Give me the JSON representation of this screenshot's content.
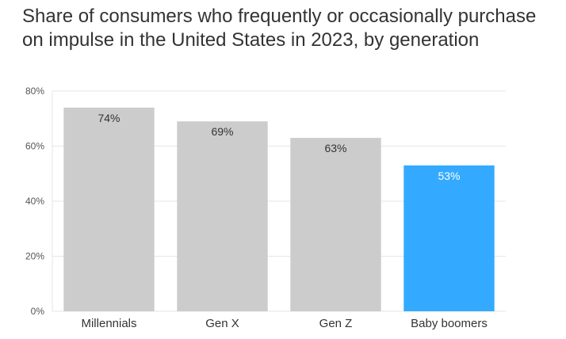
{
  "chart_data": {
    "type": "bar",
    "title": "Share of consumers who frequently or occasionally purchase on impulse in the United States in 2023, by generation",
    "categories": [
      "Millennials",
      "Gen X",
      "Gen Z",
      "Baby boomers"
    ],
    "values": [
      74,
      69,
      63,
      53
    ],
    "data_labels": [
      "74%",
      "69%",
      "63%",
      "53%"
    ],
    "ylim": [
      0,
      80
    ],
    "yticks": [
      0,
      20,
      40,
      60,
      80
    ],
    "ytick_labels": [
      "0%",
      "20%",
      "40%",
      "60%",
      "80%"
    ],
    "grid": true,
    "legend": "none",
    "colors": {
      "default": "#cccccc",
      "highlight": "#33aaff",
      "label_dark": "#333333",
      "label_light": "#ffffff"
    },
    "highlight_index": 3
  }
}
